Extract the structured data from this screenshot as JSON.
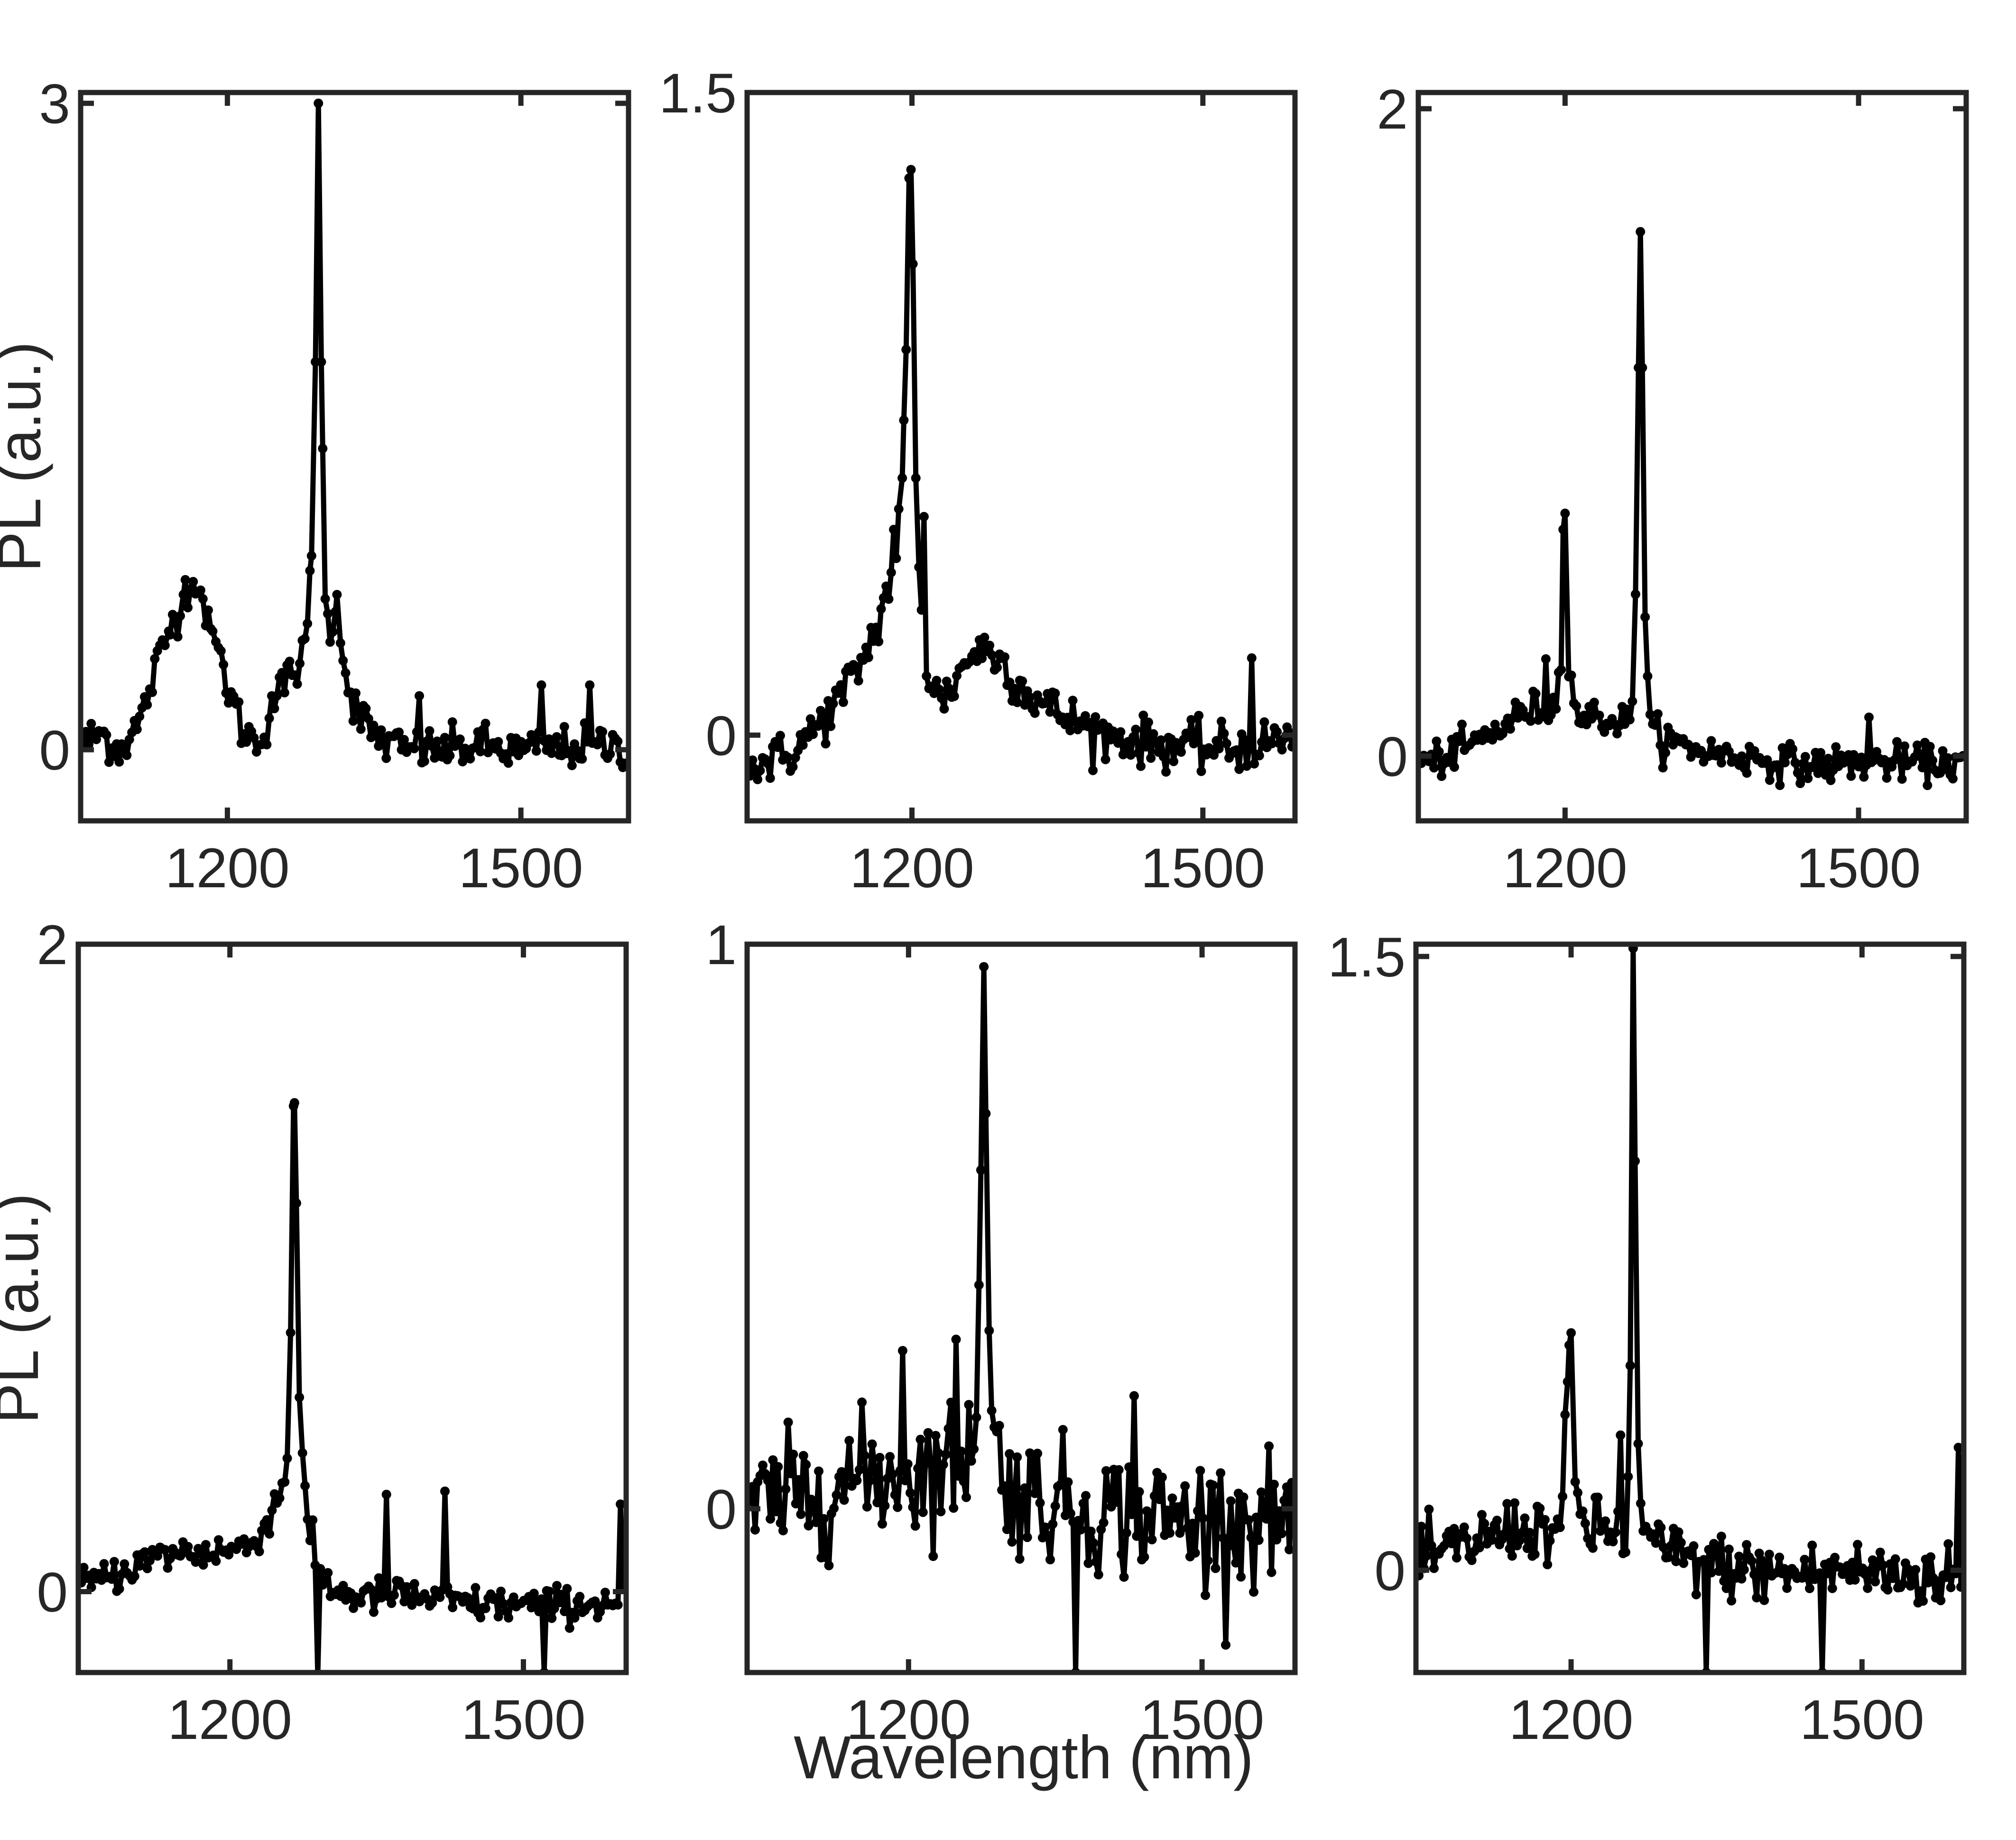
{
  "figure": {
    "xlabel": "Wavelength (nm)",
    "ylabel": "PL (a.u.)",
    "colors": {
      "axes": "#262626",
      "trace": "#000000",
      "background": "#ffffff"
    }
  },
  "chart_data": [
    {
      "type": "line",
      "xlabel": "",
      "ylabel": "PL (a.u.)",
      "xlim": [
        1050,
        1610
      ],
      "ylim": [
        -0.33,
        3.05
      ],
      "xticks": [
        1200,
        1500
      ],
      "yticks": [
        0,
        3
      ],
      "series": [
        {
          "values": [
            [
              1050,
              0.02
            ],
            [
              1070,
              0.08
            ],
            [
              1090,
              0.0
            ],
            [
              1110,
              0.12
            ],
            [
              1125,
              0.35
            ],
            [
              1140,
              0.55
            ],
            [
              1155,
              0.72
            ],
            [
              1165,
              0.78
            ],
            [
              1175,
              0.7
            ],
            [
              1185,
              0.55
            ],
            [
              1200,
              0.3
            ],
            [
              1215,
              0.1
            ],
            [
              1230,
              0.03
            ],
            [
              1240,
              0.12
            ],
            [
              1255,
              0.28
            ],
            [
              1270,
              0.38
            ],
            [
              1280,
              0.45
            ],
            [
              1286,
              0.9
            ],
            [
              1290,
              1.8
            ],
            [
              1293,
              3.0
            ],
            [
              1296,
              1.8
            ],
            [
              1300,
              0.7
            ],
            [
              1305,
              0.5
            ],
            [
              1312,
              0.72
            ],
            [
              1320,
              0.35
            ],
            [
              1335,
              0.15
            ],
            [
              1355,
              0.05
            ],
            [
              1380,
              0.0
            ],
            [
              1420,
              0.0
            ],
            [
              1460,
              0.02
            ],
            [
              1500,
              -0.01
            ],
            [
              1540,
              0.01
            ],
            [
              1580,
              0.02
            ],
            [
              1610,
              0.01
            ]
          ],
          "noise": 0.09,
          "spikes": [
            [
              1245,
              0.25
            ],
            [
              1250,
              0.25
            ],
            [
              1395,
              0.25
            ],
            [
              1520,
              0.3
            ],
            [
              1570,
              0.3
            ]
          ]
        }
      ]
    },
    {
      "type": "line",
      "xlabel": "",
      "ylabel": "",
      "xlim": [
        1030,
        1595
      ],
      "ylim": [
        -0.2,
        1.5
      ],
      "xticks": [
        1200,
        1500
      ],
      "yticks": [
        0,
        1.5
      ],
      "tick_texts": {
        "1.5": "1.5"
      },
      "series": [
        {
          "values": [
            [
              1030,
              -0.08
            ],
            [
              1050,
              -0.06
            ],
            [
              1070,
              -0.05
            ],
            [
              1090,
              -0.01
            ],
            [
              1110,
              0.04
            ],
            [
              1130,
              0.1
            ],
            [
              1150,
              0.18
            ],
            [
              1165,
              0.26
            ],
            [
              1175,
              0.34
            ],
            [
              1183,
              0.4
            ],
            [
              1190,
              0.6
            ],
            [
              1194,
              0.9
            ],
            [
              1197,
              1.3
            ],
            [
              1199,
              1.32
            ],
            [
              1201,
              1.1
            ],
            [
              1204,
              0.6
            ],
            [
              1208,
              0.35
            ],
            [
              1213,
              0.18
            ],
            [
              1222,
              0.1
            ],
            [
              1235,
              0.09
            ],
            [
              1250,
              0.15
            ],
            [
              1265,
              0.2
            ],
            [
              1275,
              0.2
            ],
            [
              1290,
              0.18
            ],
            [
              1310,
              0.12
            ],
            [
              1330,
              0.08
            ],
            [
              1360,
              0.04
            ],
            [
              1400,
              0.0
            ],
            [
              1450,
              -0.02
            ],
            [
              1500,
              -0.03
            ],
            [
              1545,
              -0.03
            ],
            [
              1595,
              0.0
            ]
          ],
          "noise": 0.05,
          "spikes": [
            [
              1212,
              0.51
            ],
            [
              1180,
              0.48
            ],
            [
              1550,
              0.18
            ]
          ]
        }
      ]
    },
    {
      "type": "line",
      "xlabel": "",
      "ylabel": "",
      "xlim": [
        1050,
        1610
      ],
      "ylim": [
        -0.2,
        2.05
      ],
      "xticks": [
        1200,
        1500
      ],
      "yticks": [
        0,
        2
      ],
      "series": [
        {
          "values": [
            [
              1060,
              -0.02
            ],
            [
              1080,
              0.0
            ],
            [
              1100,
              0.03
            ],
            [
              1120,
              0.06
            ],
            [
              1140,
              0.1
            ],
            [
              1160,
              0.14
            ],
            [
              1180,
              0.15
            ],
            [
              1190,
              0.15
            ],
            [
              1196,
              0.3
            ],
            [
              1198,
              0.7
            ],
            [
              1200,
              0.75
            ],
            [
              1203,
              0.35
            ],
            [
              1210,
              0.13
            ],
            [
              1230,
              0.12
            ],
            [
              1250,
              0.11
            ],
            [
              1268,
              0.1
            ],
            [
              1272,
              0.5
            ],
            [
              1275,
              1.2
            ],
            [
              1277,
              1.62
            ],
            [
              1279,
              1.2
            ],
            [
              1282,
              0.4
            ],
            [
              1287,
              0.08
            ],
            [
              1310,
              0.04
            ],
            [
              1350,
              0.01
            ],
            [
              1400,
              -0.01
            ],
            [
              1450,
              -0.03
            ],
            [
              1500,
              -0.02
            ],
            [
              1550,
              -0.02
            ],
            [
              1610,
              -0.02
            ]
          ],
          "noise": 0.05,
          "spikes": [
            [
              1180,
              0.3
            ],
            [
              1510,
              0.12
            ]
          ]
        }
      ]
    },
    {
      "type": "line",
      "xlabel": "",
      "ylabel": "PL (a.u.)",
      "xlim": [
        1045,
        1605
      ],
      "ylim": [
        -0.25,
        2.0
      ],
      "xticks": [
        1200,
        1500
      ],
      "yticks": [
        0,
        2
      ],
      "series": [
        {
          "values": [
            [
              1050,
              0.02
            ],
            [
              1080,
              0.05
            ],
            [
              1110,
              0.09
            ],
            [
              1140,
              0.12
            ],
            [
              1170,
              0.12
            ],
            [
              1200,
              0.13
            ],
            [
              1220,
              0.14
            ],
            [
              1235,
              0.2
            ],
            [
              1250,
              0.3
            ],
            [
              1258,
              0.35
            ],
            [
              1262,
              0.8
            ],
            [
              1265,
              1.5
            ],
            [
              1266,
              1.51
            ],
            [
              1268,
              1.2
            ],
            [
              1271,
              0.6
            ],
            [
              1275,
              0.35
            ],
            [
              1280,
              0.2
            ],
            [
              1290,
              0.05
            ],
            [
              1310,
              0.0
            ],
            [
              1340,
              -0.02
            ],
            [
              1370,
              -0.01
            ],
            [
              1400,
              -0.02
            ],
            [
              1450,
              -0.04
            ],
            [
              1500,
              -0.04
            ],
            [
              1550,
              -0.04
            ],
            [
              1605,
              -0.03
            ]
          ],
          "noise": 0.05,
          "spikes": [
            [
              1290,
              -0.26
            ],
            [
              1360,
              0.3
            ],
            [
              1420,
              0.31
            ],
            [
              1520,
              -0.25
            ],
            [
              1600,
              0.27
            ]
          ]
        }
      ]
    },
    {
      "type": "line",
      "xlabel": "Wavelength (nm)",
      "ylabel": "",
      "xlim": [
        1035,
        1595
      ],
      "ylim": [
        -0.29,
        1.0
      ],
      "xticks": [
        1200,
        1500
      ],
      "yticks": [
        0,
        1
      ],
      "series": [
        {
          "values": [
            [
              1035,
              0.0
            ],
            [
              1080,
              0.02
            ],
            [
              1120,
              0.04
            ],
            [
              1160,
              0.06
            ],
            [
              1200,
              0.06
            ],
            [
              1240,
              0.08
            ],
            [
              1262,
              0.1
            ],
            [
              1270,
              0.2
            ],
            [
              1274,
              0.6
            ],
            [
              1277,
              0.96
            ],
            [
              1279,
              0.7
            ],
            [
              1283,
              0.2
            ],
            [
              1295,
              0.05
            ],
            [
              1330,
              0.02
            ],
            [
              1380,
              0.0
            ],
            [
              1430,
              -0.01
            ],
            [
              1480,
              -0.02
            ],
            [
              1530,
              -0.02
            ],
            [
              1595,
              -0.02
            ]
          ],
          "noise": 0.1,
          "spikes": [
            [
              1249,
              0.3
            ],
            [
              1195,
              0.28
            ],
            [
              1430,
              0.2
            ],
            [
              1370,
              -0.29
            ]
          ]
        }
      ]
    },
    {
      "type": "line",
      "xlabel": "",
      "ylabel": "",
      "xlim": [
        1040,
        1605
      ],
      "ylim": [
        -0.25,
        1.53
      ],
      "xticks": [
        1200,
        1500
      ],
      "yticks": [
        0,
        1.5
      ],
      "tick_texts": {
        "1.5": "1.5"
      },
      "series": [
        {
          "values": [
            [
              1045,
              0.02
            ],
            [
              1080,
              0.05
            ],
            [
              1110,
              0.08
            ],
            [
              1140,
              0.1
            ],
            [
              1170,
              0.1
            ],
            [
              1190,
              0.1
            ],
            [
              1195,
              0.35
            ],
            [
              1198,
              0.55
            ],
            [
              1200,
              0.58
            ],
            [
              1203,
              0.2
            ],
            [
              1215,
              0.1
            ],
            [
              1240,
              0.1
            ],
            [
              1258,
              0.08
            ],
            [
              1261,
              0.5
            ],
            [
              1263,
              1.2
            ],
            [
              1264,
              1.52
            ],
            [
              1266,
              1.0
            ],
            [
              1270,
              0.12
            ],
            [
              1290,
              0.05
            ],
            [
              1330,
              0.02
            ],
            [
              1380,
              0.0
            ],
            [
              1430,
              -0.01
            ],
            [
              1480,
              0.0
            ],
            [
              1530,
              -0.01
            ],
            [
              1605,
              -0.02
            ]
          ],
          "noise": 0.07,
          "spikes": [
            [
              1250,
              0.33
            ],
            [
              1600,
              0.3
            ],
            [
              1340,
              -0.25
            ],
            [
              1460,
              -0.25
            ]
          ]
        }
      ]
    }
  ]
}
